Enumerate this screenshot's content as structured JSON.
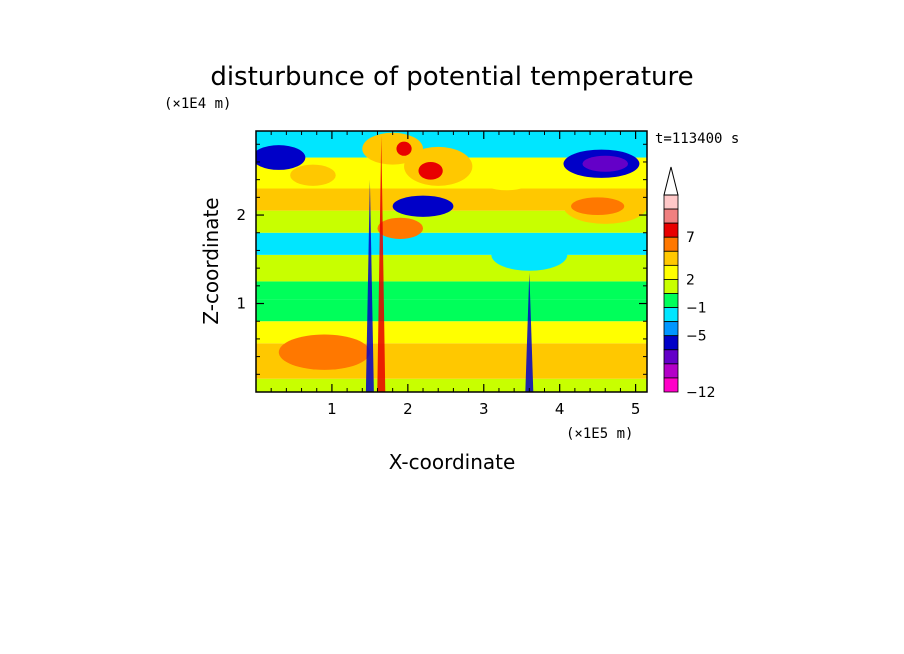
{
  "chart_data": {
    "type": "heatmap",
    "title": "disturbunce of potential temperature",
    "xlabel": "X-coordinate",
    "ylabel": "Z-coordinate",
    "x_unit": "(×1E5 m)",
    "y_unit": "(×1E4 m)",
    "time_label": "t=113400 s",
    "xlim": [
      0,
      5.15
    ],
    "ylim": [
      0,
      2.95
    ],
    "x_ticks": [
      1,
      2,
      3,
      4,
      5
    ],
    "y_ticks": [
      1,
      2
    ],
    "x_tick_labels": [
      "1",
      "2",
      "3",
      "4",
      "5"
    ],
    "y_tick_labels": [
      "1",
      "2"
    ],
    "colorbar": {
      "labeled_levels": [
        "7",
        "2",
        "−1",
        "−5",
        "−12"
      ],
      "labeled_values": [
        7,
        2,
        -1,
        -5,
        -12
      ],
      "colors_top_to_bottom": [
        "#ffc8c8",
        "#f08080",
        "#e80000",
        "#ff7800",
        "#ffc800",
        "#ffff00",
        "#c8ff00",
        "#00ff5a",
        "#00e6ff",
        "#0096ff",
        "#0000c8",
        "#6400c8",
        "#b400c8",
        "#ff00c8"
      ],
      "extend_top": true
    },
    "bands": [
      {
        "z": [
          0.0,
          0.15
        ],
        "value": "#c8ff00"
      },
      {
        "z": [
          0.15,
          0.55
        ],
        "value": "#ffc800"
      },
      {
        "z": [
          0.55,
          0.8
        ],
        "value": "#ffff00"
      },
      {
        "z": [
          0.8,
          1.05
        ],
        "value": "#00ff5a"
      },
      {
        "z": [
          1.05,
          1.25
        ],
        "value": "#00ff5a"
      },
      {
        "z": [
          1.25,
          1.55
        ],
        "value": "#c8ff00"
      },
      {
        "z": [
          1.55,
          1.8
        ],
        "value": "#00e6ff"
      },
      {
        "z": [
          1.8,
          2.05
        ],
        "value": "#c8ff00"
      },
      {
        "z": [
          2.05,
          2.3
        ],
        "value": "#ffc800"
      },
      {
        "z": [
          2.3,
          2.65
        ],
        "value": "#ffff00"
      },
      {
        "z": [
          2.65,
          2.95
        ],
        "value": "#00e6ff"
      }
    ],
    "features": [
      {
        "x": 4.55,
        "z": 2.58,
        "rx": 0.5,
        "rz": 0.16,
        "value": "#0000c8"
      },
      {
        "x": 4.6,
        "z": 2.58,
        "rx": 0.3,
        "rz": 0.09,
        "value": "#6400c8"
      },
      {
        "x": 0.3,
        "z": 2.65,
        "rx": 0.35,
        "rz": 0.14,
        "value": "#0000c8"
      },
      {
        "x": 4.6,
        "z": 2.1,
        "rx": 0.55,
        "rz": 0.2,
        "value": "#ffc800"
      },
      {
        "x": 4.5,
        "z": 2.1,
        "rx": 0.35,
        "rz": 0.1,
        "value": "#ff7800"
      },
      {
        "x": 2.4,
        "z": 2.55,
        "rx": 0.45,
        "rz": 0.22,
        "value": "#ffc800"
      },
      {
        "x": 2.3,
        "z": 2.5,
        "rx": 0.16,
        "rz": 0.1,
        "value": "#e80000"
      },
      {
        "x": 2.2,
        "z": 2.1,
        "rx": 0.4,
        "rz": 0.12,
        "value": "#0000c8"
      },
      {
        "x": 1.8,
        "z": 2.75,
        "rx": 0.4,
        "rz": 0.18,
        "value": "#ffc800"
      },
      {
        "x": 1.95,
        "z": 2.75,
        "rx": 0.1,
        "rz": 0.08,
        "value": "#e80000"
      },
      {
        "x": 1.9,
        "z": 1.85,
        "rx": 0.3,
        "rz": 0.12,
        "value": "#ff7800"
      },
      {
        "x": 0.75,
        "z": 2.45,
        "rx": 0.3,
        "rz": 0.12,
        "value": "#ffc800"
      },
      {
        "x": 0.9,
        "z": 0.45,
        "rx": 0.6,
        "rz": 0.2,
        "value": "#ff7800"
      },
      {
        "x": 3.3,
        "z": 2.4,
        "rx": 0.35,
        "rz": 0.12,
        "value": "#ffff00"
      },
      {
        "x": 3.6,
        "z": 1.55,
        "rx": 0.5,
        "rz": 0.18,
        "value": "#00e6ff"
      }
    ],
    "plumes": [
      {
        "x": 1.5,
        "z_top": 2.4,
        "value": "#0000c8"
      },
      {
        "x": 1.65,
        "z_top": 2.9,
        "value": "#e80000"
      },
      {
        "x": 3.6,
        "z_top": 1.35,
        "value": "#0000c8"
      }
    ]
  }
}
